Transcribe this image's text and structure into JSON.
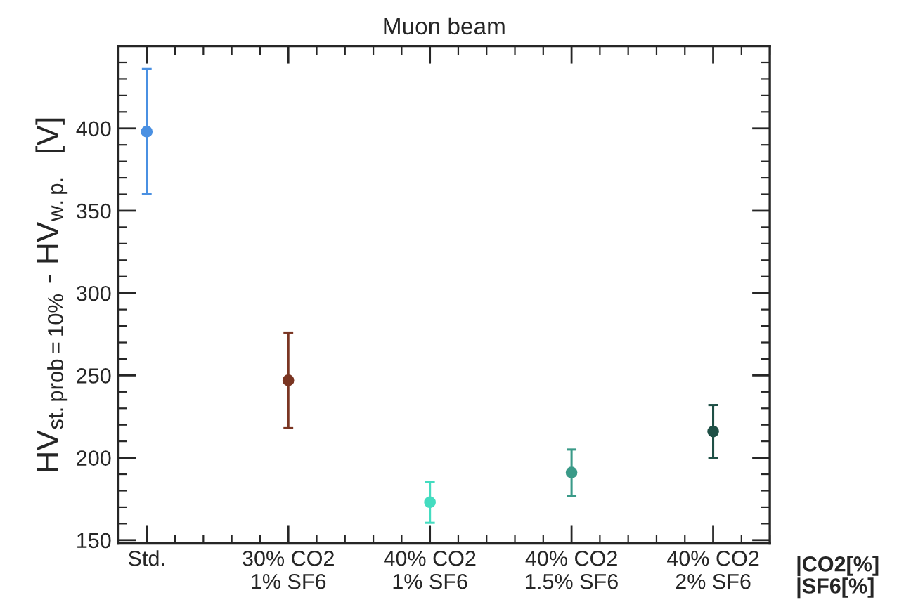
{
  "chart_data": {
    "type": "scatter",
    "title": "Muon beam",
    "ylabel": "HV$_{st.prob=10%}$ - HV$_{w.p.}$  [V]",
    "categories": [
      "Std.",
      "30% CO2\n1% SF6",
      "40% CO2\n1% SF6",
      "40% CO2\n1.5% SF6",
      "40% CO2\n2% SF6"
    ],
    "series": [
      {
        "colors": [
          "#4a90e2",
          "#7a3522",
          "#44dcc0",
          "#3a9a88",
          "#1f5046"
        ],
        "values": [
          398,
          247,
          173,
          191,
          216
        ],
        "errors": [
          38,
          29,
          12.5,
          14,
          16
        ]
      }
    ],
    "ylim": [
      148,
      450
    ],
    "yticks": [
      150,
      200,
      250,
      300,
      350,
      400
    ],
    "grid": false,
    "legend": false,
    "marker": "circle",
    "annotations": [
      "|CO2[%]\n|SF6[%]"
    ]
  }
}
